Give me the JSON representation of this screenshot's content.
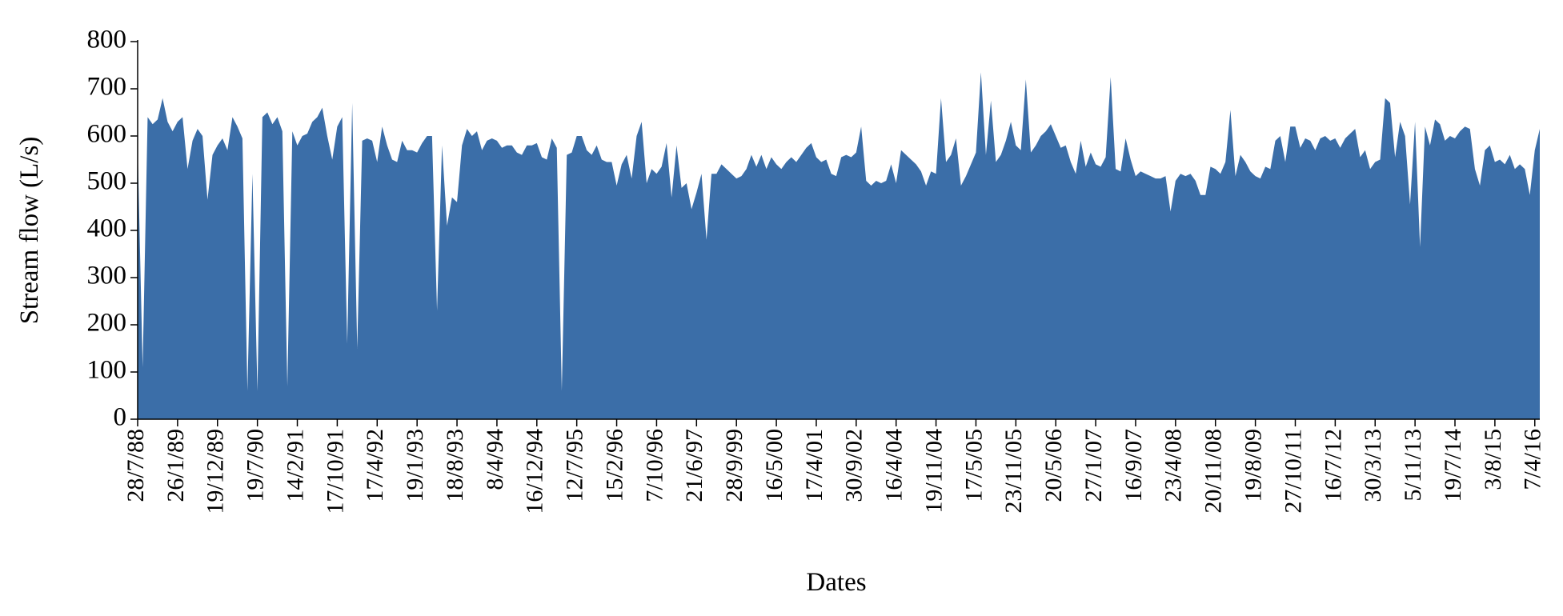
{
  "chart_data": {
    "type": "area",
    "y_label": "Stream flow (L/s)",
    "x_label": "Dates",
    "color": "#3b6ea8",
    "ylim": [
      0,
      800
    ],
    "yticks": [
      0,
      100,
      200,
      300,
      400,
      500,
      600,
      700,
      800
    ],
    "categories": [
      "28/7/88",
      null,
      null,
      null,
      null,
      null,
      null,
      null,
      "26/1/89",
      null,
      null,
      null,
      null,
      null,
      null,
      null,
      "19/12/89",
      null,
      null,
      null,
      null,
      null,
      null,
      null,
      "19/7/90",
      null,
      null,
      null,
      null,
      null,
      null,
      null,
      "14/2/91",
      null,
      null,
      null,
      null,
      null,
      null,
      null,
      "17/10/91",
      null,
      null,
      null,
      null,
      null,
      null,
      null,
      "17/4/92",
      null,
      null,
      null,
      null,
      null,
      null,
      null,
      "19/1/93",
      null,
      null,
      null,
      null,
      null,
      null,
      null,
      "18/8/93",
      null,
      null,
      null,
      null,
      null,
      null,
      null,
      "8/4/94",
      null,
      null,
      null,
      null,
      null,
      null,
      null,
      "16/12/94",
      null,
      null,
      null,
      null,
      null,
      null,
      null,
      "12/7/95",
      null,
      null,
      null,
      null,
      null,
      null,
      null,
      "15/2/96",
      null,
      null,
      null,
      null,
      null,
      null,
      null,
      "7/10/96",
      null,
      null,
      null,
      null,
      null,
      null,
      null,
      "21/6/97",
      null,
      null,
      null,
      null,
      null,
      null,
      null,
      "28/9/99",
      null,
      null,
      null,
      null,
      null,
      null,
      null,
      "16/5/00",
      null,
      null,
      null,
      null,
      null,
      null,
      null,
      "17/4/01",
      null,
      null,
      null,
      null,
      null,
      null,
      null,
      "30/9/02",
      null,
      null,
      null,
      null,
      null,
      null,
      null,
      "16/4/04",
      null,
      null,
      null,
      null,
      null,
      null,
      null,
      "19/11/04",
      null,
      null,
      null,
      null,
      null,
      null,
      null,
      "17/5/05",
      null,
      null,
      null,
      null,
      null,
      null,
      null,
      "23/11/05",
      null,
      null,
      null,
      null,
      null,
      null,
      null,
      "20/5/06",
      null,
      null,
      null,
      null,
      null,
      null,
      null,
      "27/1/07",
      null,
      null,
      null,
      null,
      null,
      null,
      null,
      "16/9/07",
      null,
      null,
      null,
      null,
      null,
      null,
      null,
      "23/4/08",
      null,
      null,
      null,
      null,
      null,
      null,
      null,
      "20/11/08",
      null,
      null,
      null,
      null,
      null,
      null,
      null,
      "19/8/09",
      null,
      null,
      null,
      null,
      null,
      null,
      null,
      "27/10/11",
      null,
      null,
      null,
      null,
      null,
      null,
      null,
      "16/7/12",
      null,
      null,
      null,
      null,
      null,
      null,
      null,
      "30/3/13",
      null,
      null,
      null,
      null,
      null,
      null,
      null,
      "5/11/13",
      null,
      null,
      null,
      null,
      null,
      null,
      null,
      "19/7/14",
      null,
      null,
      null,
      null,
      null,
      null,
      null,
      "3/8/15",
      null,
      null,
      null,
      null,
      null,
      null,
      null,
      "7/4/16",
      null
    ],
    "values": [
      580,
      110,
      640,
      625,
      635,
      680,
      630,
      610,
      630,
      640,
      530,
      590,
      615,
      600,
      465,
      560,
      580,
      595,
      570,
      640,
      620,
      595,
      60,
      520,
      60,
      640,
      650,
      625,
      640,
      610,
      70,
      610,
      580,
      600,
      605,
      630,
      640,
      660,
      600,
      550,
      620,
      640,
      160,
      670,
      150,
      590,
      595,
      590,
      545,
      620,
      580,
      550,
      545,
      590,
      570,
      570,
      565,
      585,
      600,
      600,
      230,
      580,
      410,
      470,
      460,
      580,
      615,
      600,
      610,
      570,
      590,
      595,
      590,
      575,
      580,
      580,
      565,
      560,
      580,
      580,
      585,
      555,
      550,
      595,
      575,
      60,
      560,
      565,
      600,
      600,
      570,
      560,
      580,
      550,
      545,
      545,
      495,
      540,
      560,
      510,
      600,
      630,
      500,
      530,
      520,
      535,
      585,
      470,
      580,
      490,
      500,
      445,
      480,
      520,
      380,
      520,
      520,
      540,
      530,
      520,
      510,
      515,
      530,
      560,
      535,
      560,
      530,
      555,
      540,
      530,
      545,
      555,
      545,
      560,
      575,
      585,
      555,
      545,
      550,
      520,
      515,
      555,
      560,
      555,
      565,
      620,
      505,
      495,
      505,
      500,
      505,
      540,
      500,
      570,
      560,
      550,
      540,
      525,
      495,
      525,
      520,
      680,
      545,
      560,
      595,
      495,
      515,
      540,
      565,
      735,
      560,
      675,
      545,
      560,
      590,
      630,
      580,
      570,
      720,
      565,
      580,
      600,
      610,
      625,
      600,
      575,
      580,
      545,
      520,
      590,
      535,
      565,
      540,
      535,
      555,
      725,
      530,
      525,
      595,
      550,
      515,
      525,
      520,
      515,
      510,
      510,
      515,
      440,
      505,
      520,
      515,
      520,
      505,
      475,
      475,
      535,
      530,
      520,
      545,
      655,
      515,
      560,
      545,
      525,
      515,
      510,
      535,
      530,
      590,
      600,
      545,
      620,
      620,
      575,
      595,
      590,
      570,
      595,
      600,
      590,
      595,
      575,
      595,
      605,
      615,
      555,
      570,
      530,
      545,
      550,
      680,
      670,
      555,
      630,
      600,
      455,
      630,
      365,
      620,
      580,
      635,
      625,
      590,
      600,
      595,
      610,
      620,
      615,
      530,
      495,
      570,
      580,
      545,
      550,
      540,
      560,
      530,
      540,
      530,
      475,
      570,
      615
    ]
  }
}
